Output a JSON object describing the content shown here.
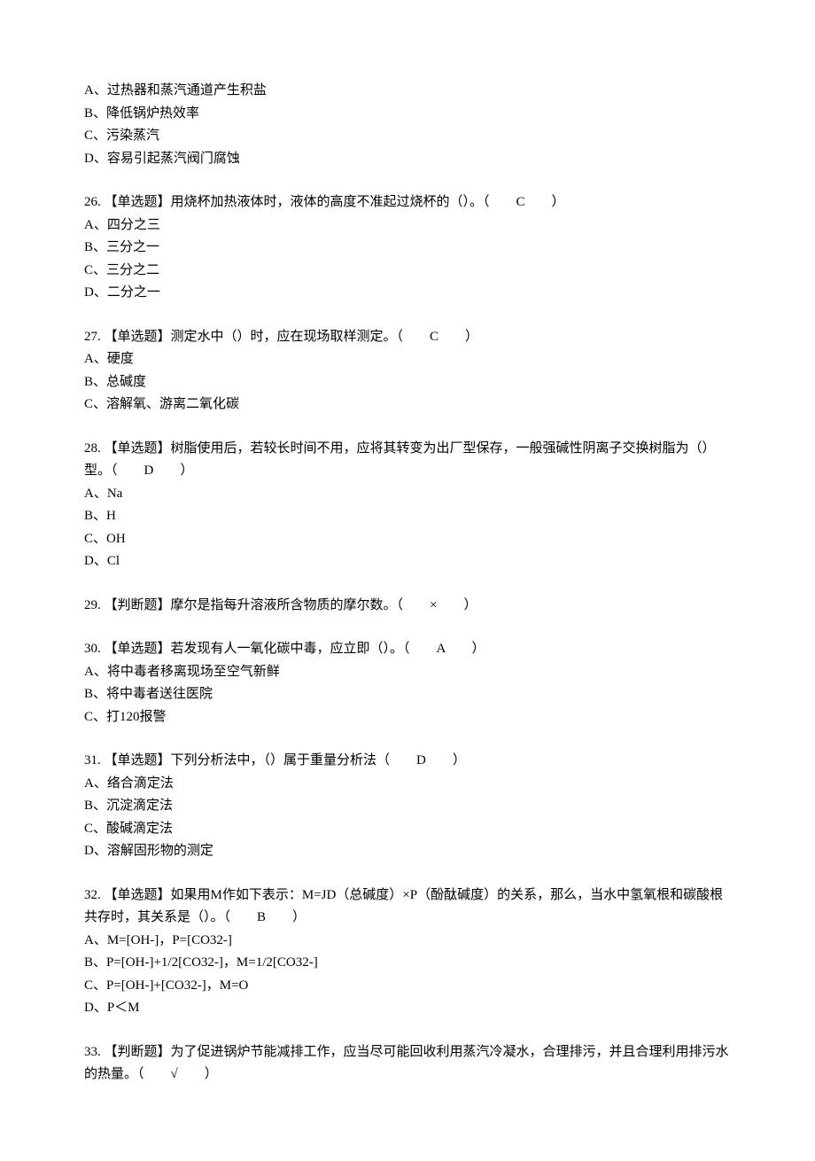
{
  "font": {
    "family": "SimSun",
    "size_pt": 11,
    "color": "#000000",
    "line_height": 1.7
  },
  "background_color": "#ffffff",
  "q25_remnant": {
    "options": [
      "A、过热器和蒸汽通道产生积盐",
      "B、降低锅炉热效率",
      "C、污染蒸汽",
      "D、容易引起蒸汽阀门腐蚀"
    ]
  },
  "q26": {
    "text": "26. 【单选题】用烧杯加热液体时，液体的高度不准起过烧杯的（）。（　　C　　）",
    "options": [
      "A、四分之三",
      "B、三分之一",
      "C、三分之二",
      "D、二分之一"
    ]
  },
  "q27": {
    "text": "27. 【单选题】测定水中（）时，应在现场取样测定。（　　C　　）",
    "options": [
      "A、硬度",
      "B、总碱度",
      "C、溶解氧、游离二氧化碳"
    ]
  },
  "q28": {
    "text": "28. 【单选题】树脂使用后，若较长时间不用，应将其转变为出厂型保存，一般强碱性阴离子交换树脂为（）型。（　　D　　）",
    "options": [
      "A、Na",
      "B、H",
      "C、OH",
      "D、Cl"
    ]
  },
  "q29": {
    "text": "29. 【判断题】摩尔是指每升溶液所含物质的摩尔数。（　　×　　）"
  },
  "q30": {
    "text": "30. 【单选题】若发现有人一氧化碳中毒，应立即（）。（　　A　　）",
    "options": [
      "A、将中毒者移离现场至空气新鲜",
      "B、将中毒者送往医院",
      "C、打120报警"
    ]
  },
  "q31": {
    "text": "31. 【单选题】下列分析法中，（）属于重量分析法（　　D　　）",
    "options": [
      "A、络合滴定法",
      "B、沉淀滴定法",
      "C、酸碱滴定法",
      "D、溶解固形物的测定"
    ]
  },
  "q32": {
    "text": "32. 【单选题】如果用M作如下表示：M=JD（总碱度）×P（酚酞碱度）的关系，那么，当水中氢氧根和碳酸根共存时，其关系是（）。（　　B　　）",
    "options": [
      "A、M=[OH-]，P=[CO32-]",
      "B、P=[OH-]+1/2[CO32-]，M=1/2[CO32-]",
      "C、P=[OH-]+[CO32-]，M=O",
      "D、P＜M"
    ]
  },
  "q33": {
    "text": "33. 【判断题】为了促进锅炉节能减排工作，应当尽可能回收利用蒸汽冷凝水，合理排污，并且合理利用排污水的热量。（　　√　　）"
  }
}
